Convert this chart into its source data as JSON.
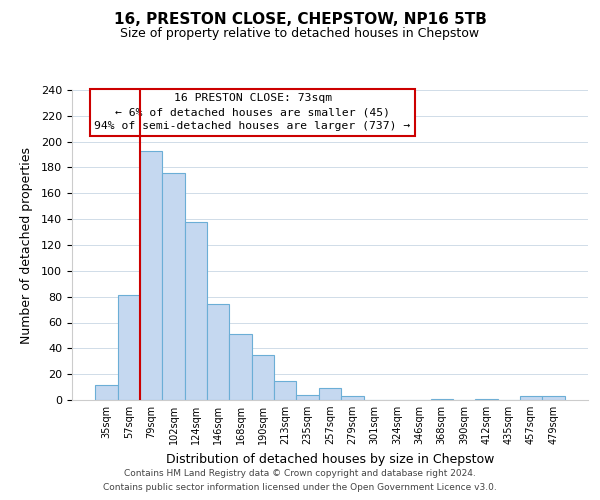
{
  "title": "16, PRESTON CLOSE, CHEPSTOW, NP16 5TB",
  "subtitle": "Size of property relative to detached houses in Chepstow",
  "xlabel": "Distribution of detached houses by size in Chepstow",
  "ylabel": "Number of detached properties",
  "bar_labels": [
    "35sqm",
    "57sqm",
    "79sqm",
    "102sqm",
    "124sqm",
    "146sqm",
    "168sqm",
    "190sqm",
    "213sqm",
    "235sqm",
    "257sqm",
    "279sqm",
    "301sqm",
    "324sqm",
    "346sqm",
    "368sqm",
    "390sqm",
    "412sqm",
    "435sqm",
    "457sqm",
    "479sqm"
  ],
  "bar_heights": [
    12,
    81,
    193,
    176,
    138,
    74,
    51,
    35,
    15,
    4,
    9,
    3,
    0,
    0,
    0,
    1,
    0,
    1,
    0,
    3,
    3
  ],
  "bar_color": "#c5d8f0",
  "bar_edge_color": "#6baed6",
  "marker_line_index": 2,
  "marker_line_color": "#cc0000",
  "annotation_title": "16 PRESTON CLOSE: 73sqm",
  "annotation_line1": "← 6% of detached houses are smaller (45)",
  "annotation_line2": "94% of semi-detached houses are larger (737) →",
  "annotation_box_color": "#ffffff",
  "annotation_border_color": "#cc0000",
  "ylim": [
    0,
    240
  ],
  "yticks": [
    0,
    20,
    40,
    60,
    80,
    100,
    120,
    140,
    160,
    180,
    200,
    220,
    240
  ],
  "footer1": "Contains HM Land Registry data © Crown copyright and database right 2024.",
  "footer2": "Contains public sector information licensed under the Open Government Licence v3.0.",
  "background_color": "#ffffff",
  "grid_color": "#d0dce8"
}
